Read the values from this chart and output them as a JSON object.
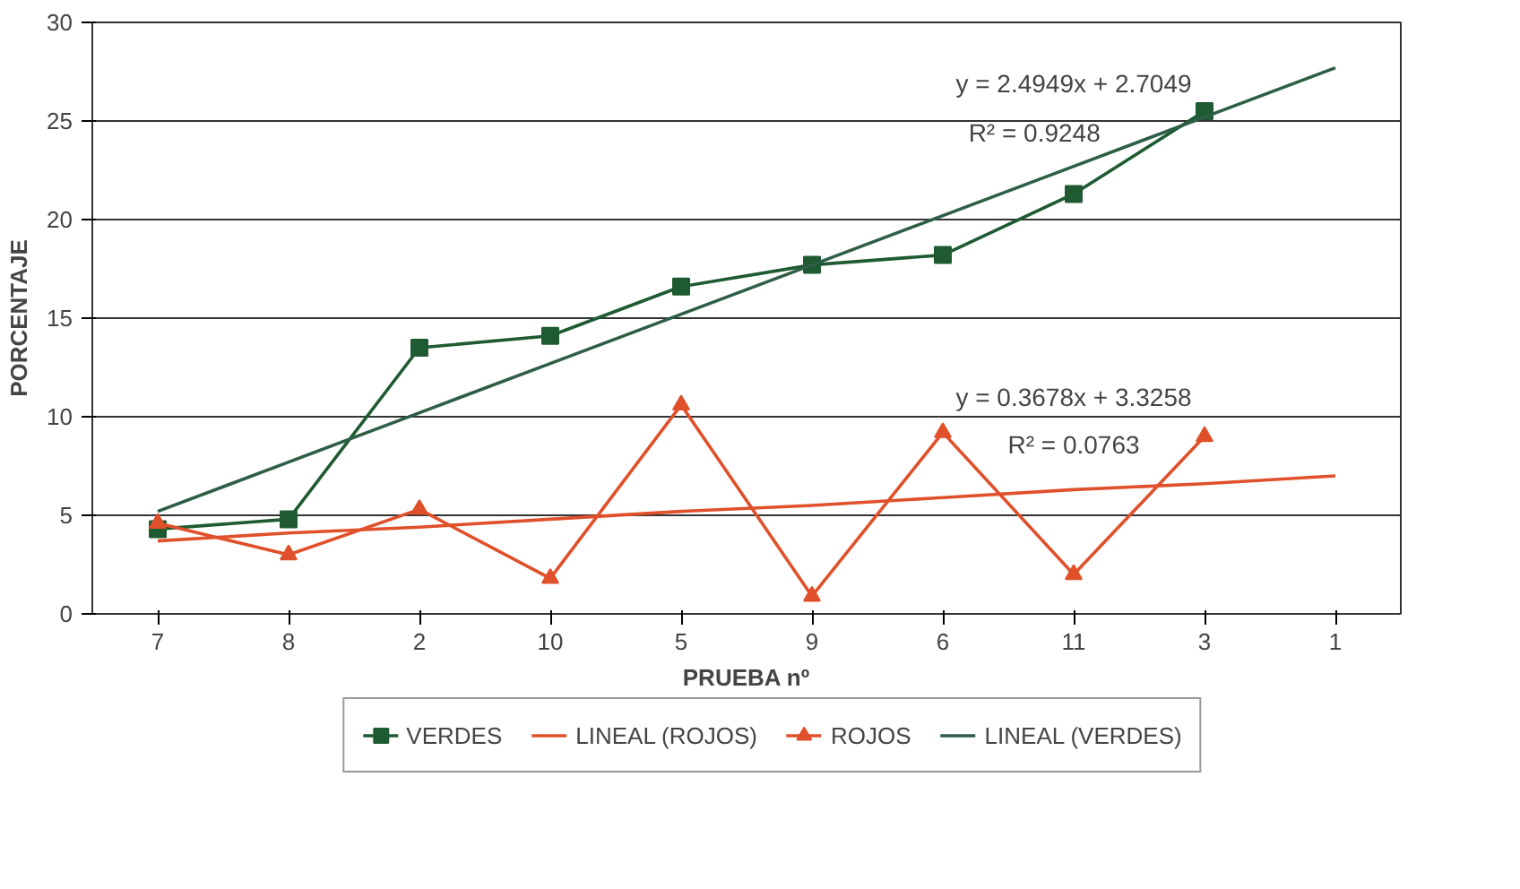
{
  "chart_data": {
    "type": "line",
    "xlabel": "PRUEBA nº",
    "ylabel": "PORCENTAJE",
    "categories": [
      "7",
      "8",
      "2",
      "10",
      "5",
      "9",
      "6",
      "11",
      "3",
      "1"
    ],
    "ylim": [
      0,
      30
    ],
    "yticks": [
      0,
      5,
      10,
      15,
      20,
      25,
      30
    ],
    "grid": "y",
    "legend": "bottom",
    "series": [
      {
        "name": "VERDES",
        "color": "#1e5a32",
        "marker": "square",
        "values": [
          4.3,
          4.8,
          13.5,
          14.1,
          16.6,
          17.7,
          18.2,
          21.3,
          25.5,
          null
        ]
      },
      {
        "name": "LINEAL (ROJOS)",
        "color": "#e0502a",
        "marker": "none",
        "values": [
          3.7,
          4.1,
          4.4,
          4.8,
          5.2,
          5.5,
          5.9,
          6.3,
          6.6,
          7.0
        ]
      },
      {
        "name": "ROJOS",
        "color": "#e0502a",
        "marker": "triangle",
        "values": [
          4.6,
          3.0,
          5.3,
          1.8,
          10.6,
          0.9,
          9.2,
          2.0,
          9.0,
          null
        ]
      },
      {
        "name": "LINEAL (VERDES)",
        "color": "#2e5e46",
        "marker": "none",
        "values": [
          5.2,
          7.7,
          10.2,
          12.7,
          15.2,
          17.7,
          20.2,
          22.7,
          25.2,
          27.7
        ]
      }
    ],
    "annotations": [
      "y = 2.4949x + 2.7049",
      "R² = 0.9248",
      "y = 0.3678x + 3.3258",
      "R² = 0.0763"
    ]
  }
}
